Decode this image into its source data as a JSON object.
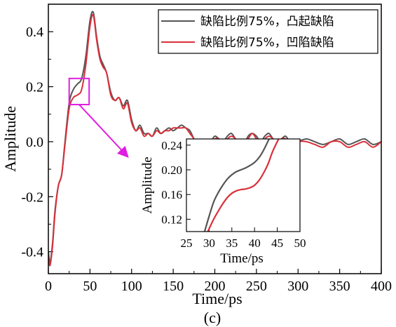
{
  "chart_data": {
    "type": "line",
    "caption": "(c)",
    "xlabel": "Time/ps",
    "ylabel": "Amplitude",
    "xlim": [
      0,
      400
    ],
    "ylim": [
      -0.48,
      0.5
    ],
    "xticks": [
      "0",
      "50",
      "100",
      "150",
      "200",
      "250",
      "300",
      "350",
      "400"
    ],
    "yticks": [
      "-0.4",
      "-0.2",
      "0.0",
      "0.2",
      "0.4"
    ],
    "legend_position": "top-right",
    "series": [
      {
        "name": "缺陷比例75%，凸起缺陷",
        "color": "#555555",
        "x": [
          0,
          2,
          5,
          8,
          12,
          16,
          20,
          25,
          30,
          35,
          40,
          45,
          50,
          54,
          58,
          62,
          66,
          70,
          75,
          80,
          85,
          90,
          95,
          100,
          105,
          110,
          115,
          120,
          125,
          130,
          135,
          140,
          145,
          150,
          155,
          160,
          165,
          170,
          175,
          180,
          185,
          190,
          195,
          200,
          205,
          210,
          215,
          220,
          225,
          230,
          235,
          240,
          245,
          250,
          255,
          260,
          265,
          270,
          275,
          280,
          285,
          290,
          295,
          300,
          310,
          320,
          330,
          340,
          350,
          360,
          370,
          380,
          390,
          400
        ],
        "y": [
          -0.4,
          -0.44,
          -0.37,
          -0.25,
          -0.16,
          -0.12,
          0.0,
          0.14,
          0.19,
          0.21,
          0.23,
          0.31,
          0.44,
          0.47,
          0.38,
          0.31,
          0.28,
          0.25,
          0.18,
          0.15,
          0.16,
          0.13,
          0.15,
          0.08,
          0.04,
          0.06,
          0.03,
          0.03,
          0.02,
          0.05,
          0.03,
          0.04,
          0.05,
          0.04,
          0.05,
          0.06,
          0.05,
          0.04,
          0.01,
          -0.01,
          -0.01,
          -0.01,
          0.0,
          0.02,
          0.01,
          0.0,
          0.02,
          0.03,
          0.01,
          0.0,
          -0.01,
          0.02,
          0.03,
          0.02,
          0.0,
          0.02,
          0.03,
          0.01,
          0.0,
          0.01,
          0.02,
          0.0,
          -0.01,
          0.0,
          0.01,
          0.0,
          -0.01,
          0.0,
          0.01,
          -0.01,
          0.0,
          0.01,
          -0.01,
          0.0
        ]
      },
      {
        "name": "缺陷比例75%，凹陷缺陷",
        "color": "#d9303a",
        "x": [
          0,
          2,
          5,
          8,
          12,
          16,
          20,
          25,
          30,
          35,
          40,
          45,
          50,
          54,
          58,
          62,
          66,
          70,
          75,
          80,
          85,
          90,
          95,
          100,
          105,
          110,
          115,
          120,
          125,
          130,
          135,
          140,
          145,
          150,
          155,
          160,
          165,
          170,
          175,
          180,
          185,
          190,
          195,
          200,
          205,
          210,
          215,
          220,
          225,
          230,
          235,
          240,
          245,
          250,
          255,
          260,
          265,
          270,
          275,
          280,
          285,
          290,
          295,
          300,
          310,
          320,
          330,
          340,
          350,
          360,
          370,
          380,
          390,
          400
        ],
        "y": [
          -0.42,
          -0.45,
          -0.38,
          -0.26,
          -0.16,
          -0.12,
          -0.01,
          0.12,
          0.16,
          0.17,
          0.19,
          0.28,
          0.42,
          0.46,
          0.37,
          0.3,
          0.27,
          0.25,
          0.17,
          0.15,
          0.16,
          0.12,
          0.14,
          0.07,
          0.04,
          0.05,
          0.02,
          0.03,
          0.02,
          0.04,
          0.03,
          0.04,
          0.04,
          0.05,
          0.05,
          0.05,
          0.05,
          0.03,
          0.01,
          -0.02,
          -0.01,
          -0.02,
          -0.01,
          0.01,
          0.01,
          -0.01,
          0.01,
          0.02,
          0.01,
          -0.01,
          -0.01,
          0.01,
          0.03,
          0.01,
          -0.01,
          0.01,
          0.02,
          0.01,
          -0.01,
          0.01,
          0.01,
          -0.01,
          -0.02,
          0.0,
          0.0,
          -0.01,
          -0.02,
          0.0,
          0.0,
          -0.02,
          -0.01,
          0.0,
          -0.02,
          0.0
        ]
      }
    ],
    "zoom_box": {
      "x": [
        25,
        49
      ],
      "y": [
        0.135,
        0.23
      ]
    },
    "inset": {
      "xlabel": "Time/ps",
      "ylabel": "Amplitude",
      "xlim": [
        25,
        50
      ],
      "ylim": [
        0.1,
        0.25
      ],
      "xticks": [
        "25",
        "30",
        "35",
        "40",
        "45",
        "50"
      ],
      "yticks": [
        "0.12",
        "0.16",
        "0.20",
        "0.24"
      ],
      "series": [
        {
          "name": "缺陷比例75%，凸起缺陷",
          "x": [
            29.0,
            30,
            31,
            32,
            33,
            34,
            35,
            36,
            37,
            38,
            39,
            40,
            41,
            42,
            43.2
          ],
          "y": [
            0.1,
            0.125,
            0.148,
            0.163,
            0.175,
            0.185,
            0.192,
            0.197,
            0.2,
            0.203,
            0.207,
            0.212,
            0.22,
            0.232,
            0.25
          ]
        },
        {
          "name": "缺陷比例75%，凹陷缺陷",
          "x": [
            29.7,
            31,
            32,
            33,
            34,
            35,
            36,
            37,
            38,
            39,
            40,
            41,
            42,
            43,
            44,
            45.3
          ],
          "y": [
            0.1,
            0.12,
            0.133,
            0.145,
            0.155,
            0.162,
            0.166,
            0.168,
            0.169,
            0.171,
            0.175,
            0.183,
            0.195,
            0.21,
            0.23,
            0.25
          ]
        }
      ]
    }
  }
}
